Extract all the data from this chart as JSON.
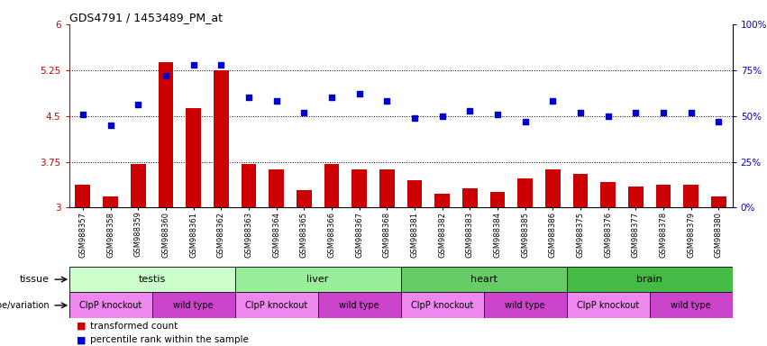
{
  "title": "GDS4791 / 1453489_PM_at",
  "samples": [
    "GSM988357",
    "GSM988358",
    "GSM988359",
    "GSM988360",
    "GSM988361",
    "GSM988362",
    "GSM988363",
    "GSM988364",
    "GSM988365",
    "GSM988366",
    "GSM988367",
    "GSM988368",
    "GSM988381",
    "GSM988382",
    "GSM988383",
    "GSM988384",
    "GSM988385",
    "GSM988386",
    "GSM988375",
    "GSM988376",
    "GSM988377",
    "GSM988378",
    "GSM988379",
    "GSM988380"
  ],
  "bar_values": [
    3.38,
    3.18,
    3.72,
    5.38,
    4.62,
    5.25,
    3.72,
    3.62,
    3.28,
    3.72,
    3.62,
    3.62,
    3.45,
    3.22,
    3.32,
    3.25,
    3.48,
    3.62,
    3.55,
    3.42,
    3.35,
    3.38,
    3.38,
    3.18
  ],
  "dot_values": [
    51,
    45,
    56,
    72,
    78,
    78,
    60,
    58,
    52,
    60,
    62,
    58,
    49,
    50,
    53,
    51,
    47,
    58,
    52,
    50,
    52,
    52,
    52,
    47
  ],
  "tissues": [
    {
      "label": "testis",
      "start": 0,
      "end": 6,
      "color": "#ccffcc"
    },
    {
      "label": "liver",
      "start": 6,
      "end": 12,
      "color": "#99ee99"
    },
    {
      "label": "heart",
      "start": 12,
      "end": 18,
      "color": "#66cc66"
    },
    {
      "label": "brain",
      "start": 18,
      "end": 24,
      "color": "#44bb44"
    }
  ],
  "genotypes": [
    {
      "label": "ClpP knockout",
      "start": 0,
      "end": 3,
      "color": "#ee88ee"
    },
    {
      "label": "wild type",
      "start": 3,
      "end": 6,
      "color": "#dd44dd"
    },
    {
      "label": "ClpP knockout",
      "start": 6,
      "end": 9,
      "color": "#ee88ee"
    },
    {
      "label": "wild type",
      "start": 9,
      "end": 12,
      "color": "#dd44dd"
    },
    {
      "label": "ClpP knockout",
      "start": 12,
      "end": 15,
      "color": "#ee88ee"
    },
    {
      "label": "wild type",
      "start": 15,
      "end": 18,
      "color": "#dd44dd"
    },
    {
      "label": "ClpP knockout",
      "start": 18,
      "end": 21,
      "color": "#ee88ee"
    },
    {
      "label": "wild type",
      "start": 21,
      "end": 24,
      "color": "#dd44dd"
    }
  ],
  "bar_color": "#cc0000",
  "dot_color": "#0000cc",
  "ylim_left": [
    3.0,
    6.0
  ],
  "ylim_right": [
    0,
    100
  ],
  "yticks_left": [
    3.0,
    3.75,
    4.5,
    5.25,
    6.0
  ],
  "ytick_labels_left": [
    "3",
    "3.75",
    "4.5",
    "5.25",
    "6"
  ],
  "yticks_right": [
    0,
    25,
    50,
    75,
    100
  ],
  "ytick_labels_right": [
    "0%",
    "25%",
    "50%",
    "75%",
    "100%"
  ],
  "hlines": [
    3.75,
    4.5,
    5.25
  ],
  "bar_color_legend": "red",
  "dot_color_legend": "blue",
  "legend_bar_label": "transformed count",
  "legend_dot_label": "percentile rank within the sample",
  "tissue_label": "tissue",
  "geno_label": "genotype/variation"
}
